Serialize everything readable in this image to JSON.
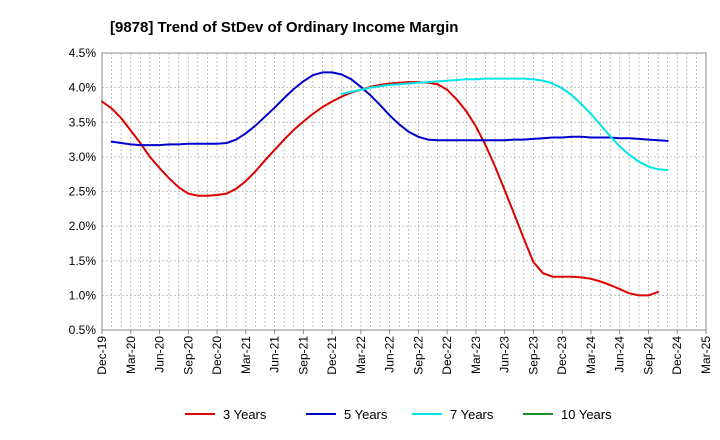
{
  "chart_data": {
    "type": "line",
    "title": "[9878]  Trend of StDev of Ordinary Income Margin",
    "xlabel": "",
    "ylabel": "",
    "ylim": [
      0.5,
      4.5
    ],
    "y_ticks": [
      "0.5%",
      "1.0%",
      "1.5%",
      "2.0%",
      "2.5%",
      "3.0%",
      "3.5%",
      "4.0%",
      "4.5%"
    ],
    "y_tick_values": [
      0.5,
      1.0,
      1.5,
      2.0,
      2.5,
      3.0,
      3.5,
      4.0,
      4.5
    ],
    "x_ticks": [
      "Dec-19",
      "Mar-20",
      "Jun-20",
      "Sep-20",
      "Dec-20",
      "Mar-21",
      "Jun-21",
      "Sep-21",
      "Dec-21",
      "Mar-22",
      "Jun-22",
      "Sep-22",
      "Dec-22",
      "Mar-23",
      "Jun-23",
      "Sep-23",
      "Dec-23",
      "Mar-24",
      "Jun-24",
      "Sep-24",
      "Dec-24",
      "Mar-25"
    ],
    "x_range": [
      0,
      63
    ],
    "grid": true,
    "legend_position": "bottom",
    "series": [
      {
        "name": "3 Years",
        "color": "#dd0000",
        "x": [
          0,
          1,
          2,
          3,
          4,
          5,
          6,
          7,
          8,
          9,
          10,
          11,
          12,
          13,
          14,
          15,
          16,
          17,
          18,
          19,
          20,
          21,
          22,
          23,
          24,
          25,
          26,
          27,
          28,
          29,
          30,
          31,
          32,
          33,
          34,
          35,
          36,
          37,
          38,
          39,
          40,
          41,
          42,
          43,
          44,
          45,
          46,
          47,
          48,
          49,
          50,
          51,
          52,
          53,
          54,
          55,
          56,
          57,
          58,
          59,
          60
        ],
        "values": [
          3.8,
          3.7,
          3.56,
          3.38,
          3.2,
          3.0,
          2.84,
          2.69,
          2.56,
          2.47,
          2.44,
          2.44,
          2.45,
          2.47,
          2.54,
          2.65,
          2.79,
          2.95,
          3.1,
          3.25,
          3.39,
          3.51,
          3.62,
          3.72,
          3.8,
          3.87,
          3.93,
          3.97,
          4.01,
          4.04,
          4.06,
          4.07,
          4.08,
          4.08,
          4.07,
          4.05,
          3.97,
          3.83,
          3.66,
          3.44,
          3.17,
          2.86,
          2.52,
          2.17,
          1.82,
          1.48,
          1.32,
          1.27,
          1.27,
          1.27,
          1.26,
          1.24,
          1.2,
          1.15,
          1.09,
          1.03,
          1.0,
          1.0,
          1.05,
          null,
          null
        ]
      },
      {
        "name": "5 Years",
        "color": "#0000cc",
        "x": [
          1,
          2,
          3,
          4,
          5,
          6,
          7,
          8,
          9,
          10,
          11,
          12,
          13,
          14,
          15,
          16,
          17,
          18,
          19,
          20,
          21,
          22,
          23,
          24,
          25,
          26,
          27,
          28,
          29,
          30,
          31,
          32,
          33,
          34,
          35,
          36,
          37,
          38,
          39,
          40,
          41,
          42,
          43,
          44,
          45,
          46,
          47,
          48,
          49,
          50,
          51,
          52,
          53,
          54,
          55,
          56,
          57,
          58,
          59,
          60
        ],
        "values": [
          3.22,
          3.2,
          3.18,
          3.17,
          3.17,
          3.17,
          3.18,
          3.18,
          3.19,
          3.19,
          3.19,
          3.19,
          3.2,
          3.25,
          3.34,
          3.45,
          3.58,
          3.71,
          3.85,
          3.98,
          4.09,
          4.18,
          4.22,
          4.22,
          4.19,
          4.12,
          4.01,
          3.89,
          3.75,
          3.6,
          3.47,
          3.36,
          3.29,
          3.25,
          3.24,
          3.24,
          3.24,
          3.24,
          3.24,
          3.24,
          3.24,
          3.24,
          3.25,
          3.25,
          3.26,
          3.27,
          3.28,
          3.28,
          3.29,
          3.29,
          3.28,
          3.28,
          3.28,
          3.27,
          3.27,
          3.26,
          3.25,
          3.24,
          3.23,
          null
        ]
      },
      {
        "name": "7 Years",
        "color": "#00e5e5",
        "x": [
          25,
          26,
          27,
          28,
          29,
          30,
          31,
          32,
          33,
          34,
          35,
          36,
          37,
          38,
          39,
          40,
          41,
          42,
          43,
          44,
          45,
          46,
          47,
          48,
          49,
          50,
          51,
          52,
          53,
          54,
          55,
          56,
          57,
          58,
          59,
          60
        ],
        "values": [
          3.91,
          3.94,
          3.97,
          4.0,
          4.02,
          4.04,
          4.05,
          4.06,
          4.07,
          4.08,
          4.09,
          4.1,
          4.11,
          4.12,
          4.12,
          4.13,
          4.13,
          4.13,
          4.13,
          4.13,
          4.12,
          4.1,
          4.06,
          3.99,
          3.89,
          3.76,
          3.62,
          3.46,
          3.3,
          3.15,
          3.03,
          2.93,
          2.86,
          2.82,
          2.81,
          null
        ]
      },
      {
        "name": "10 Years",
        "color": "#228b22",
        "x": [],
        "values": []
      }
    ]
  }
}
